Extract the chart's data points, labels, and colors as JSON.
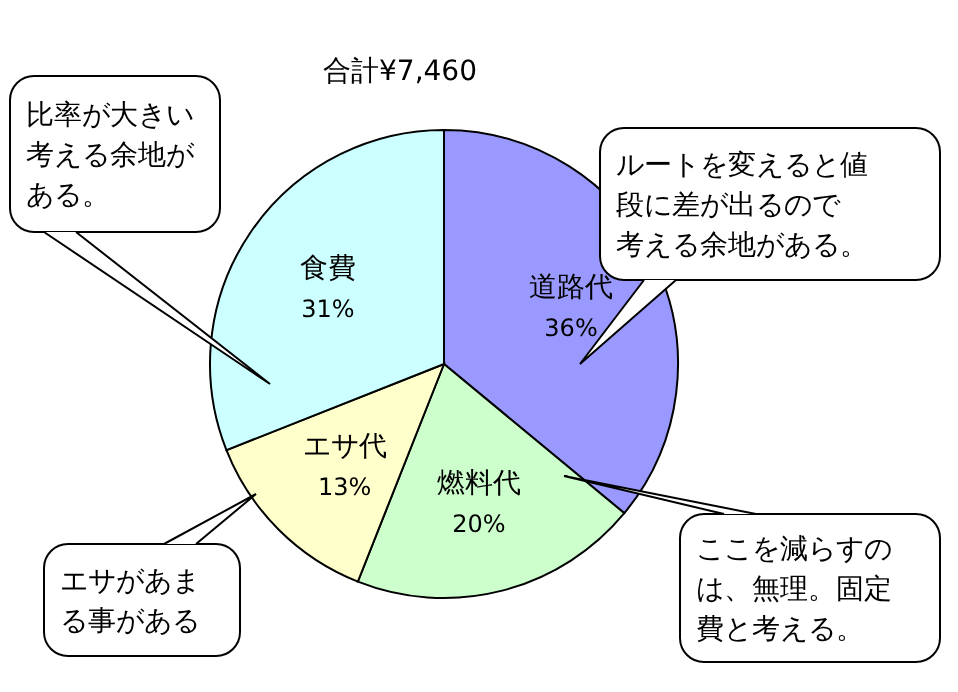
{
  "chart_data": {
    "type": "pie",
    "title": "合計¥7,460",
    "categories": [
      "道路代",
      "燃料代",
      "エサ代",
      "食費"
    ],
    "values": [
      36,
      20,
      13,
      31
    ],
    "colors": [
      "#9999ff",
      "#ccffcc",
      "#ffffcc",
      "#ccffff"
    ],
    "value_labels": [
      "36%",
      "20%",
      "13%",
      "31%"
    ],
    "annotations": [
      "比率が大きい考える余地がある。",
      "ルートを変えると値段に差が出るので考える余地がある。",
      "ここを減らすのは、無理。固定費と考える。",
      "エサがあまる事がある"
    ]
  }
}
